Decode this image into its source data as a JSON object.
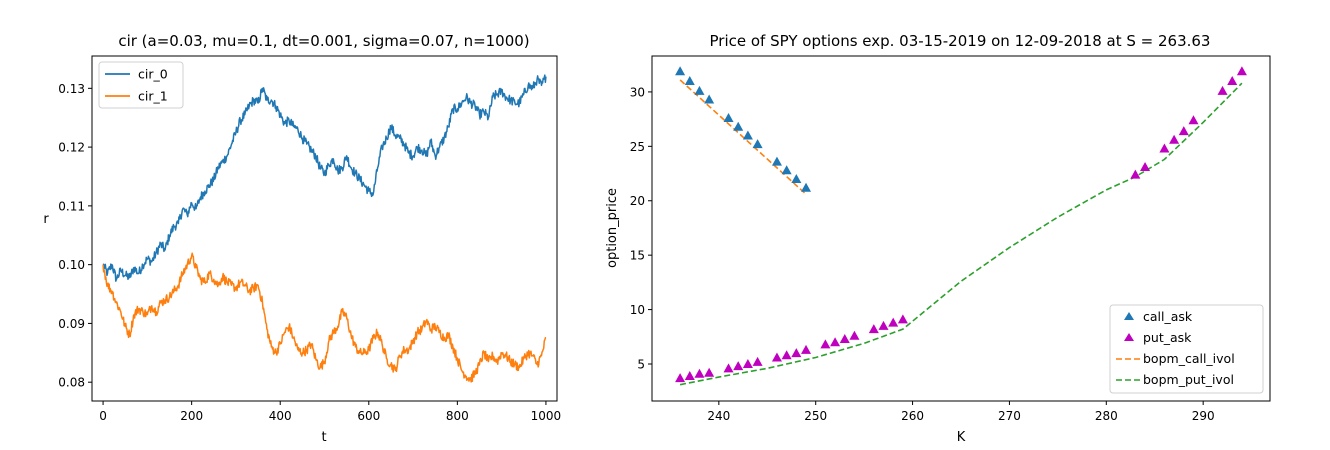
{
  "chart_data": [
    {
      "type": "line",
      "title": "cir (a=0.03, mu=0.1, dt=0.001, sigma=0.07, n=1000)",
      "xlabel": "t",
      "ylabel": "r",
      "xlim": [
        -25,
        1025
      ],
      "ylim": [
        0.0768,
        0.1355
      ],
      "xticks": [
        0,
        200,
        400,
        600,
        800,
        1000
      ],
      "yticks": [
        0.08,
        0.09,
        0.1,
        0.11,
        0.12,
        0.13
      ],
      "ytick_labels": [
        "0.08",
        "0.09",
        "0.10",
        "0.11",
        "0.12",
        "0.13"
      ],
      "legend": "upper-left",
      "series": [
        {
          "name": "cir_0",
          "color": "#1f77b4",
          "x": [
            0,
            10,
            20,
            30,
            40,
            50,
            60,
            70,
            80,
            90,
            100,
            110,
            120,
            130,
            140,
            150,
            160,
            170,
            180,
            190,
            200,
            210,
            220,
            230,
            240,
            250,
            260,
            270,
            280,
            290,
            300,
            310,
            320,
            330,
            340,
            350,
            360,
            370,
            380,
            390,
            400,
            410,
            420,
            430,
            440,
            450,
            460,
            470,
            480,
            490,
            500,
            510,
            520,
            530,
            540,
            550,
            560,
            570,
            580,
            590,
            600,
            610,
            620,
            630,
            640,
            650,
            660,
            670,
            680,
            690,
            700,
            710,
            720,
            730,
            740,
            750,
            760,
            770,
            780,
            790,
            800,
            810,
            820,
            830,
            840,
            850,
            860,
            870,
            880,
            890,
            900,
            910,
            920,
            930,
            940,
            950,
            960,
            970,
            980,
            990,
            1000
          ],
          "values": [
            0.1,
            0.0985,
            0.1,
            0.0975,
            0.099,
            0.0982,
            0.0978,
            0.0995,
            0.0985,
            0.1,
            0.101,
            0.1005,
            0.102,
            0.1035,
            0.1025,
            0.105,
            0.1065,
            0.107,
            0.1095,
            0.1085,
            0.1105,
            0.1095,
            0.1115,
            0.1125,
            0.1135,
            0.1145,
            0.1165,
            0.1175,
            0.1185,
            0.1205,
            0.1225,
            0.1245,
            0.1255,
            0.127,
            0.128,
            0.1275,
            0.13,
            0.128,
            0.128,
            0.127,
            0.1255,
            0.124,
            0.1245,
            0.1235,
            0.123,
            0.1215,
            0.1205,
            0.1195,
            0.1185,
            0.1165,
            0.1155,
            0.117,
            0.118,
            0.116,
            0.1165,
            0.1185,
            0.1165,
            0.1155,
            0.1145,
            0.1135,
            0.1125,
            0.112,
            0.1165,
            0.12,
            0.1215,
            0.1235,
            0.122,
            0.1215,
            0.1205,
            0.119,
            0.1185,
            0.12,
            0.1195,
            0.1185,
            0.121,
            0.1185,
            0.12,
            0.1215,
            0.1235,
            0.1265,
            0.1265,
            0.1275,
            0.1285,
            0.1275,
            0.127,
            0.1255,
            0.126,
            0.125,
            0.1285,
            0.129,
            0.1295,
            0.1285,
            0.128,
            0.1275,
            0.1275,
            0.129,
            0.1305,
            0.13,
            0.1315,
            0.1305,
            0.132
          ]
        },
        {
          "name": "cir_1",
          "color": "#ff7f0e",
          "x": [
            0,
            10,
            20,
            30,
            40,
            50,
            60,
            70,
            80,
            90,
            100,
            110,
            120,
            130,
            140,
            150,
            160,
            170,
            180,
            190,
            200,
            210,
            220,
            230,
            240,
            250,
            260,
            270,
            280,
            290,
            300,
            310,
            320,
            330,
            340,
            350,
            360,
            370,
            380,
            390,
            400,
            410,
            420,
            430,
            440,
            450,
            460,
            470,
            480,
            490,
            500,
            510,
            520,
            530,
            540,
            550,
            560,
            570,
            580,
            590,
            600,
            610,
            620,
            630,
            640,
            650,
            660,
            670,
            680,
            690,
            700,
            710,
            720,
            730,
            740,
            750,
            760,
            770,
            780,
            790,
            800,
            810,
            820,
            830,
            840,
            850,
            860,
            870,
            880,
            890,
            900,
            910,
            920,
            930,
            940,
            950,
            960,
            970,
            980,
            990,
            1000
          ],
          "values": [
            0.1,
            0.0965,
            0.0955,
            0.0935,
            0.092,
            0.0895,
            0.088,
            0.0915,
            0.0925,
            0.092,
            0.0915,
            0.093,
            0.092,
            0.0935,
            0.094,
            0.0945,
            0.0955,
            0.0965,
            0.0985,
            0.1,
            0.1015,
            0.0995,
            0.0975,
            0.097,
            0.0985,
            0.0975,
            0.0965,
            0.098,
            0.097,
            0.0965,
            0.096,
            0.097,
            0.0965,
            0.0955,
            0.096,
            0.0965,
            0.0935,
            0.089,
            0.086,
            0.085,
            0.0865,
            0.0885,
            0.0895,
            0.0875,
            0.0855,
            0.085,
            0.0855,
            0.0865,
            0.084,
            0.0825,
            0.0835,
            0.087,
            0.0885,
            0.0895,
            0.092,
            0.091,
            0.088,
            0.086,
            0.085,
            0.085,
            0.0855,
            0.0875,
            0.0885,
            0.0865,
            0.084,
            0.083,
            0.082,
            0.0845,
            0.0855,
            0.0855,
            0.087,
            0.0885,
            0.089,
            0.0905,
            0.089,
            0.0895,
            0.0885,
            0.0875,
            0.088,
            0.086,
            0.084,
            0.082,
            0.081,
            0.0805,
            0.0815,
            0.083,
            0.085,
            0.0835,
            0.0845,
            0.0835,
            0.085,
            0.0845,
            0.0835,
            0.083,
            0.0825,
            0.084,
            0.085,
            0.0845,
            0.083,
            0.0845,
            0.0875
          ]
        }
      ]
    },
    {
      "type": "scatter",
      "title": "Price of SPY options exp. 03-15-2019 on 12-09-2018 at S = 263.63",
      "xlabel": "K",
      "ylabel": "option_price",
      "xlim": [
        233.1,
        296.9
      ],
      "ylim": [
        1.6,
        33.3
      ],
      "xticks": [
        240,
        250,
        260,
        270,
        280,
        290
      ],
      "yticks": [
        5,
        10,
        15,
        20,
        25,
        30
      ],
      "legend": "lower-right",
      "series": [
        {
          "name": "call_ask",
          "kind": "marker",
          "color": "#1f77b4",
          "x": [
            236,
            237,
            238,
            239,
            241,
            242,
            243,
            244,
            246,
            247,
            248,
            249
          ],
          "values": [
            31.9,
            31.0,
            30.1,
            29.3,
            27.6,
            26.8,
            26.0,
            25.2,
            23.6,
            22.8,
            22.0,
            21.2
          ]
        },
        {
          "name": "put_ask",
          "kind": "marker",
          "color": "#bf00bf",
          "x": [
            236,
            237,
            238,
            239,
            241,
            242,
            243,
            244,
            246,
            247,
            248,
            249,
            251,
            252,
            253,
            254,
            256,
            257,
            258,
            259,
            283,
            284,
            286,
            287,
            288,
            289,
            292,
            293,
            294
          ],
          "values": [
            3.7,
            3.9,
            4.1,
            4.2,
            4.6,
            4.8,
            5.0,
            5.2,
            5.6,
            5.8,
            6.0,
            6.3,
            6.8,
            7.0,
            7.3,
            7.6,
            8.2,
            8.5,
            8.8,
            9.1,
            22.4,
            23.1,
            24.8,
            25.6,
            26.4,
            27.4,
            30.1,
            31.0,
            31.9
          ]
        },
        {
          "name": "bopm_call_ivol",
          "kind": "dashed-line",
          "color": "#ff7f0e",
          "x": [
            236,
            249
          ],
          "values": [
            31.1,
            20.6
          ]
        },
        {
          "name": "bopm_put_ivol",
          "kind": "dashed-line",
          "color": "#2ca02c",
          "x": [
            236,
            240,
            245,
            250,
            255,
            259,
            265,
            270,
            275,
            280,
            283,
            286,
            290,
            294
          ],
          "values": [
            3.1,
            3.8,
            4.6,
            5.6,
            6.9,
            8.2,
            12.6,
            15.7,
            18.5,
            21.0,
            22.2,
            23.8,
            27.2,
            30.8
          ]
        }
      ]
    }
  ]
}
